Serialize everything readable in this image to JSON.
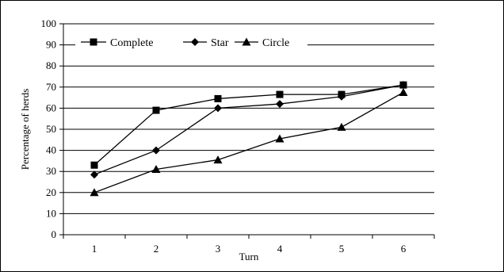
{
  "chart_data": {
    "type": "line",
    "title": "",
    "xlabel": "Turn",
    "ylabel": "Percentage of herds",
    "categories": [
      "1",
      "2",
      "3",
      "4",
      "5",
      "6"
    ],
    "ylim": [
      0,
      100
    ],
    "yticks": [
      "0",
      "10",
      "20",
      "30",
      "40",
      "50",
      "60",
      "70",
      "80",
      "90",
      "100"
    ],
    "grid": "horizontal",
    "legend_position": "top-left inside plot",
    "series": [
      {
        "name": "Complete",
        "marker": "square",
        "color": "#000000",
        "values": [
          33,
          59,
          64.5,
          66.5,
          66.5,
          71
        ]
      },
      {
        "name": "Star",
        "marker": "diamond",
        "color": "#000000",
        "values": [
          28.5,
          40,
          60,
          62,
          65.5,
          71
        ]
      },
      {
        "name": "Circle",
        "marker": "triangle",
        "color": "#000000",
        "values": [
          20,
          31,
          35.5,
          45.5,
          51,
          67.5
        ]
      }
    ]
  }
}
